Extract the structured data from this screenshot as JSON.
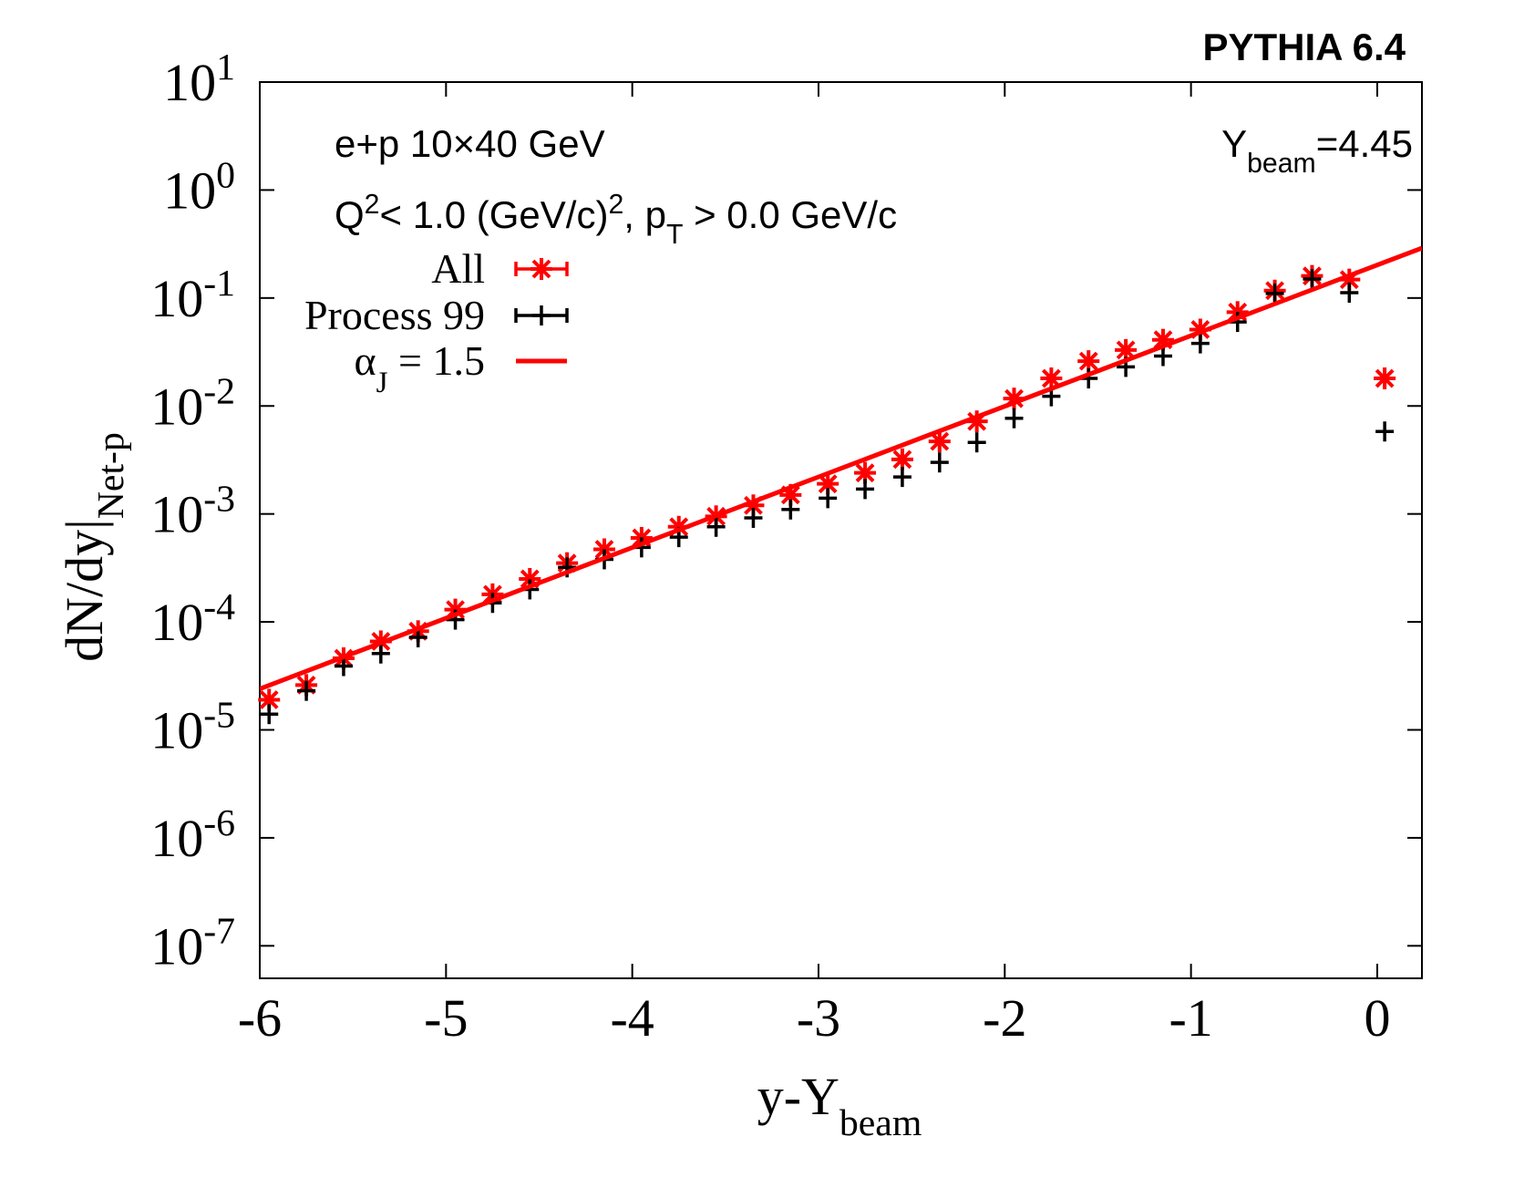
{
  "chart_data": {
    "type": "scatter",
    "title": "PYTHIA 6.4",
    "annotations": [
      "e+p 10×40 GeV",
      "Q^{2}< 1.0 (GeV/c)^{2}, p_{T} > 0.0 GeV/c",
      "Y_{beam}=4.45"
    ],
    "x_label": "y-Y_{beam}",
    "y_label": "dN/dy|_{Net-p}",
    "log_y": true,
    "grid": false,
    "legend": "top-left",
    "xlim": [
      -6,
      0.24
    ],
    "ylim": [
      5e-08,
      10
    ],
    "xticks": [
      -6,
      -5,
      -4,
      -3,
      -2,
      -1,
      0
    ],
    "yticks": [
      {
        "value": 1e-07,
        "label": "10^{-7}"
      },
      {
        "value": 1e-06,
        "label": "10^{-6}"
      },
      {
        "value": 1e-05,
        "label": "10^{-5}"
      },
      {
        "value": 0.0001,
        "label": "10^{-4}"
      },
      {
        "value": 0.001,
        "label": "10^{-3}"
      },
      {
        "value": 0.01,
        "label": "10^{-2}"
      },
      {
        "value": 0.1,
        "label": "10^{-1}"
      },
      {
        "value": 1,
        "label": "10^{0}"
      },
      {
        "value": 10,
        "label": "10^{1}"
      }
    ],
    "series": [
      {
        "name": "All",
        "color": "#ff0000",
        "marker": "star",
        "x": [
          -5.95,
          -5.75,
          -5.55,
          -5.35,
          -5.15,
          -4.95,
          -4.75,
          -4.55,
          -4.35,
          -4.15,
          -3.95,
          -3.75,
          -3.55,
          -3.35,
          -3.15,
          -2.95,
          -2.75,
          -2.55,
          -2.35,
          -2.15,
          -1.95,
          -1.75,
          -1.55,
          -1.35,
          -1.15,
          -0.95,
          -0.75,
          -0.55,
          -0.35,
          -0.15,
          0.04
        ],
        "values": [
          1.9e-05,
          2.6e-05,
          4.6e-05,
          6.6e-05,
          8.2e-05,
          0.00013,
          0.00018,
          0.00025,
          0.00035,
          0.00047,
          0.0006,
          0.00076,
          0.00095,
          0.0012,
          0.0015,
          0.0019,
          0.0024,
          0.0032,
          0.0047,
          0.0072,
          0.0117,
          0.018,
          0.026,
          0.033,
          0.041,
          0.051,
          0.074,
          0.117,
          0.16,
          0.148,
          0.018
        ]
      },
      {
        "name": "Process 99",
        "color": "#000000",
        "marker": "plus",
        "x": [
          -5.95,
          -5.75,
          -5.55,
          -5.35,
          -5.15,
          -4.95,
          -4.75,
          -4.55,
          -4.35,
          -4.15,
          -3.95,
          -3.75,
          -3.55,
          -3.35,
          -3.15,
          -2.95,
          -2.75,
          -2.55,
          -2.35,
          -2.15,
          -1.95,
          -1.75,
          -1.55,
          -1.35,
          -1.15,
          -0.95,
          -0.75,
          -0.55,
          -0.35,
          -0.15,
          0.04
        ],
        "values": [
          1.4e-05,
          2.3e-05,
          3.9e-05,
          5.1e-05,
          7.2e-05,
          0.000105,
          0.00015,
          0.0002,
          0.00032,
          0.00038,
          0.00049,
          0.00061,
          0.00076,
          0.00092,
          0.0011,
          0.0014,
          0.0017,
          0.0022,
          0.003,
          0.0046,
          0.0077,
          0.0123,
          0.018,
          0.023,
          0.029,
          0.038,
          0.06,
          0.11,
          0.15,
          0.112,
          0.0058
        ]
      },
      {
        "name": "α_{J} = 1.5",
        "color": "#ff0000",
        "type": "line",
        "x": [
          -6,
          0.24
        ],
        "values": [
          2.4e-05,
          0.29
        ]
      }
    ]
  }
}
